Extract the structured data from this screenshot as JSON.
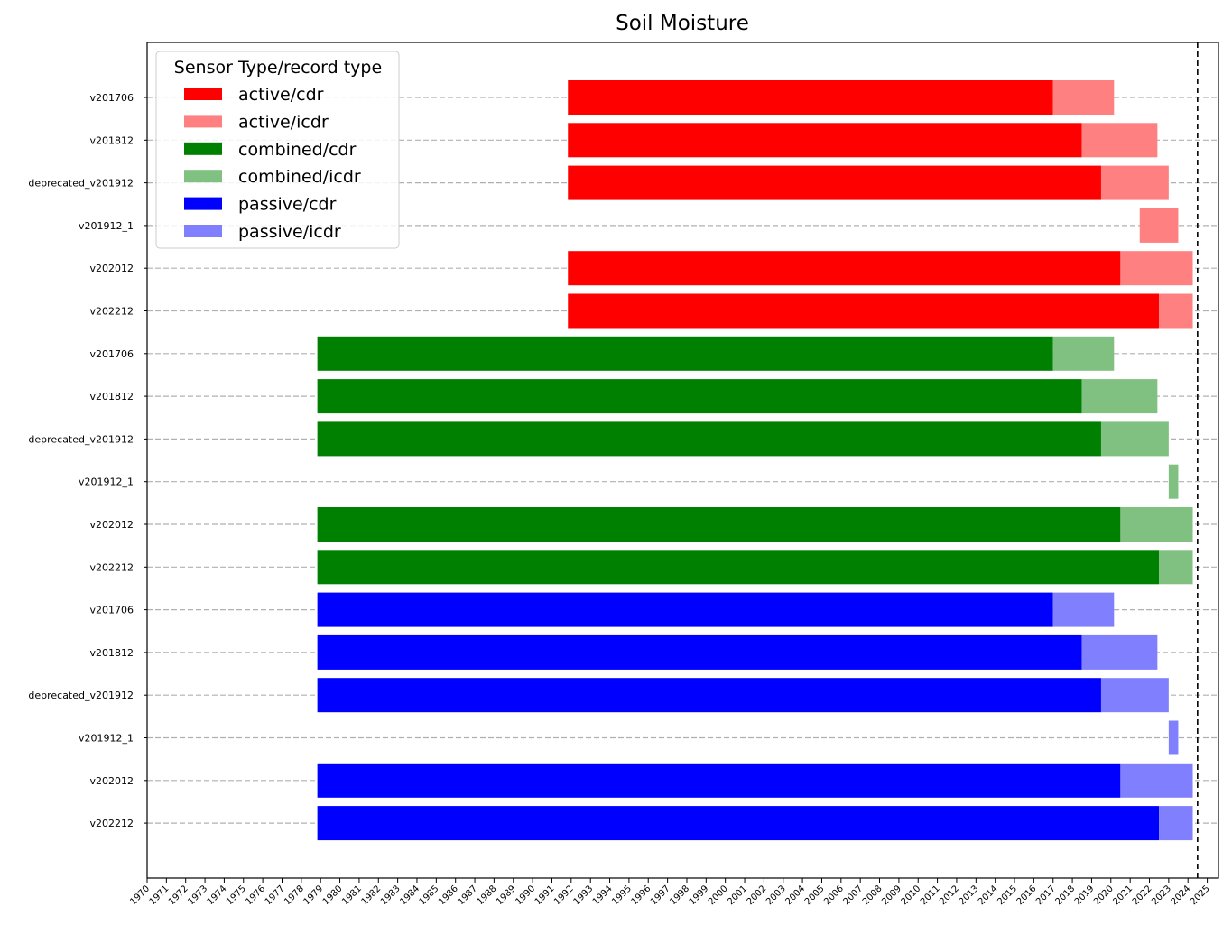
{
  "chart_data": {
    "type": "bar",
    "orientation": "horizontal",
    "title": "Soil Moisture",
    "xlabel": "",
    "ylabel": "",
    "xlim": [
      "1970-01-01",
      "2025-08-01"
    ],
    "x_ticks": [
      "1970",
      "1971",
      "1972",
      "1973",
      "1974",
      "1975",
      "1976",
      "1977",
      "1978",
      "1979",
      "1980",
      "1981",
      "1982",
      "1983",
      "1984",
      "1985",
      "1986",
      "1987",
      "1988",
      "1989",
      "1990",
      "1991",
      "1992",
      "1993",
      "1994",
      "1995",
      "1996",
      "1997",
      "1998",
      "1999",
      "2000",
      "2001",
      "2002",
      "2003",
      "2004",
      "2005",
      "2006",
      "2007",
      "2008",
      "2009",
      "2010",
      "2011",
      "2012",
      "2013",
      "2014",
      "2015",
      "2016",
      "2017",
      "2018",
      "2019",
      "2020",
      "2021",
      "2022",
      "2023",
      "2024",
      "2025"
    ],
    "reference_line": {
      "date": "2024-07-01",
      "style": "dashed",
      "color": "#000000"
    },
    "grid": "horizontal dashed",
    "legend": {
      "title": "Sensor Type/record type",
      "placement": "top-left",
      "entries": [
        {
          "label": "active/cdr",
          "color": "#ff0000"
        },
        {
          "label": "active/icdr",
          "color": "#ff8080"
        },
        {
          "label": "combined/cdr",
          "color": "#008000"
        },
        {
          "label": "combined/icdr",
          "color": "#80c080"
        },
        {
          "label": "passive/cdr",
          "color": "#0000ff"
        },
        {
          "label": "passive/icdr",
          "color": "#8080ff"
        }
      ]
    },
    "rows": [
      {
        "label": "v201706",
        "type": "active",
        "cdr": [
          "1991-11-01",
          "2016-12-31"
        ],
        "icdr": [
          "2016-12-31",
          "2020-03-01"
        ]
      },
      {
        "label": "v201812",
        "type": "active",
        "cdr": [
          "1991-11-01",
          "2018-06-30"
        ],
        "icdr": [
          "2018-06-30",
          "2022-06-01"
        ]
      },
      {
        "label": "deprecated_v201912",
        "type": "active",
        "cdr": [
          "1991-11-01",
          "2019-06-30"
        ],
        "icdr": [
          "2019-06-30",
          "2023-01-01"
        ]
      },
      {
        "label": "v201912_1",
        "type": "active",
        "cdr": null,
        "icdr": [
          "2021-07-01",
          "2023-07-01"
        ]
      },
      {
        "label": "v202012",
        "type": "active",
        "cdr": [
          "1991-11-01",
          "2020-06-30"
        ],
        "icdr": [
          "2020-06-30",
          "2024-04-01"
        ]
      },
      {
        "label": "v202212",
        "type": "active",
        "cdr": [
          "1991-11-01",
          "2022-06-30"
        ],
        "icdr": [
          "2022-06-30",
          "2024-04-01"
        ]
      },
      {
        "label": "v201706",
        "type": "combined",
        "cdr": [
          "1978-11-01",
          "2016-12-31"
        ],
        "icdr": [
          "2016-12-31",
          "2020-03-01"
        ]
      },
      {
        "label": "v201812",
        "type": "combined",
        "cdr": [
          "1978-11-01",
          "2018-06-30"
        ],
        "icdr": [
          "2018-06-30",
          "2022-06-01"
        ]
      },
      {
        "label": "deprecated_v201912",
        "type": "combined",
        "cdr": [
          "1978-11-01",
          "2019-06-30"
        ],
        "icdr": [
          "2019-06-30",
          "2023-01-01"
        ]
      },
      {
        "label": "v201912_1",
        "type": "combined",
        "cdr": null,
        "icdr": [
          "2023-01-01",
          "2023-07-01"
        ]
      },
      {
        "label": "v202012",
        "type": "combined",
        "cdr": [
          "1978-11-01",
          "2020-06-30"
        ],
        "icdr": [
          "2020-06-30",
          "2024-04-01"
        ]
      },
      {
        "label": "v202212",
        "type": "combined",
        "cdr": [
          "1978-11-01",
          "2022-06-30"
        ],
        "icdr": [
          "2022-06-30",
          "2024-04-01"
        ]
      },
      {
        "label": "v201706",
        "type": "passive",
        "cdr": [
          "1978-11-01",
          "2016-12-31"
        ],
        "icdr": [
          "2016-12-31",
          "2020-03-01"
        ]
      },
      {
        "label": "v201812",
        "type": "passive",
        "cdr": [
          "1978-11-01",
          "2018-06-30"
        ],
        "icdr": [
          "2018-06-30",
          "2022-06-01"
        ]
      },
      {
        "label": "deprecated_v201912",
        "type": "passive",
        "cdr": [
          "1978-11-01",
          "2019-06-30"
        ],
        "icdr": [
          "2019-06-30",
          "2023-01-01"
        ]
      },
      {
        "label": "v201912_1",
        "type": "passive",
        "cdr": null,
        "icdr": [
          "2023-01-01",
          "2023-07-01"
        ]
      },
      {
        "label": "v202012",
        "type": "passive",
        "cdr": [
          "1978-11-01",
          "2020-06-30"
        ],
        "icdr": [
          "2020-06-30",
          "2024-04-01"
        ]
      },
      {
        "label": "v202212",
        "type": "passive",
        "cdr": [
          "1978-11-01",
          "2022-06-30"
        ],
        "icdr": [
          "2022-06-30",
          "2024-04-01"
        ]
      }
    ]
  }
}
